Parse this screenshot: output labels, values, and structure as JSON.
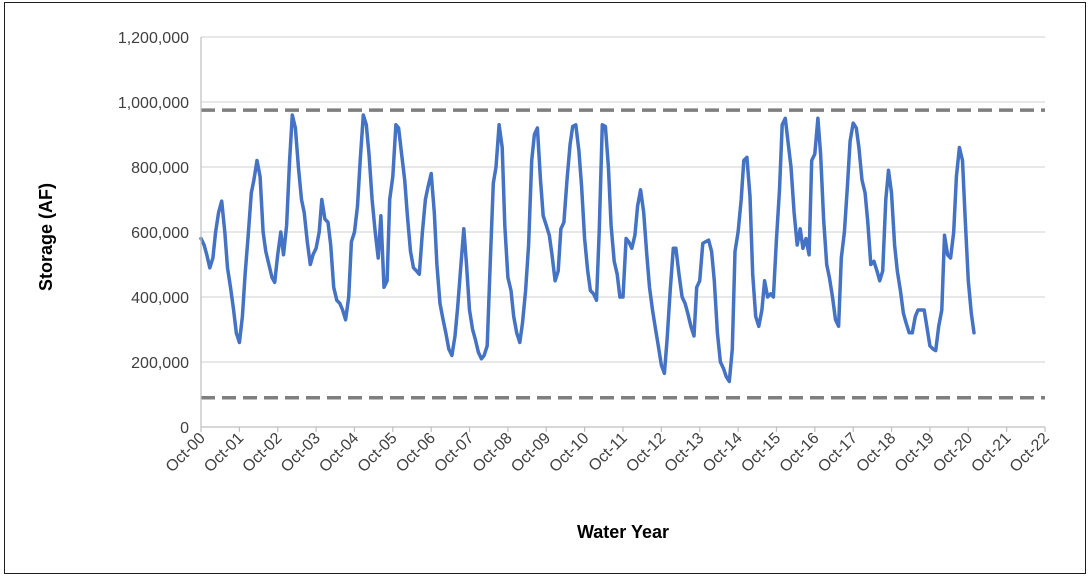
{
  "chart_data": {
    "type": "line",
    "title": "",
    "xlabel": "Water Year",
    "ylabel": "Storage (AF)",
    "ylim": [
      0,
      1200000
    ],
    "y_ticks": [
      0,
      200000,
      400000,
      600000,
      800000,
      1000000,
      1200000
    ],
    "y_tick_labels": [
      "0",
      "200,000",
      "400,000",
      "600,000",
      "800,000",
      "1,000,000",
      "1,200,000"
    ],
    "x_tick_labels": [
      "Oct-00",
      "Oct-01",
      "Oct-02",
      "Oct-03",
      "Oct-04",
      "Oct-05",
      "Oct-06",
      "Oct-07",
      "Oct-08",
      "Oct-09",
      "Oct-10",
      "Oct-11",
      "Oct-12",
      "Oct-13",
      "Oct-14",
      "Oct-15",
      "Oct-16",
      "Oct-17",
      "Oct-18",
      "Oct-19",
      "Oct-20",
      "Oct-21",
      "Oct-22"
    ],
    "x_range_years": [
      0,
      22
    ],
    "grid": "horizontal",
    "series": [
      {
        "role": "storage",
        "color": "#4472C4",
        "points": [
          [
            0.0,
            580000
          ],
          [
            0.08,
            560000
          ],
          [
            0.15,
            530000
          ],
          [
            0.23,
            490000
          ],
          [
            0.31,
            520000
          ],
          [
            0.38,
            600000
          ],
          [
            0.46,
            660000
          ],
          [
            0.54,
            695000
          ],
          [
            0.62,
            600000
          ],
          [
            0.69,
            490000
          ],
          [
            0.77,
            430000
          ],
          [
            0.85,
            360000
          ],
          [
            0.92,
            290000
          ],
          [
            1.0,
            260000
          ],
          [
            1.08,
            340000
          ],
          [
            1.15,
            470000
          ],
          [
            1.23,
            590000
          ],
          [
            1.31,
            720000
          ],
          [
            1.38,
            760000
          ],
          [
            1.46,
            820000
          ],
          [
            1.54,
            770000
          ],
          [
            1.62,
            600000
          ],
          [
            1.69,
            540000
          ],
          [
            1.77,
            500000
          ],
          [
            1.85,
            460000
          ],
          [
            1.92,
            445000
          ],
          [
            2.0,
            530000
          ],
          [
            2.08,
            600000
          ],
          [
            2.15,
            530000
          ],
          [
            2.23,
            620000
          ],
          [
            2.31,
            820000
          ],
          [
            2.38,
            960000
          ],
          [
            2.46,
            920000
          ],
          [
            2.54,
            800000
          ],
          [
            2.62,
            700000
          ],
          [
            2.69,
            660000
          ],
          [
            2.77,
            570000
          ],
          [
            2.85,
            500000
          ],
          [
            2.92,
            530000
          ],
          [
            3.0,
            550000
          ],
          [
            3.08,
            600000
          ],
          [
            3.15,
            700000
          ],
          [
            3.23,
            640000
          ],
          [
            3.31,
            630000
          ],
          [
            3.38,
            560000
          ],
          [
            3.46,
            430000
          ],
          [
            3.54,
            390000
          ],
          [
            3.62,
            380000
          ],
          [
            3.69,
            360000
          ],
          [
            3.77,
            330000
          ],
          [
            3.85,
            400000
          ],
          [
            3.92,
            570000
          ],
          [
            4.0,
            600000
          ],
          [
            4.08,
            680000
          ],
          [
            4.15,
            820000
          ],
          [
            4.23,
            960000
          ],
          [
            4.31,
            930000
          ],
          [
            4.38,
            840000
          ],
          [
            4.46,
            700000
          ],
          [
            4.54,
            600000
          ],
          [
            4.62,
            520000
          ],
          [
            4.69,
            650000
          ],
          [
            4.77,
            430000
          ],
          [
            4.85,
            450000
          ],
          [
            4.92,
            700000
          ],
          [
            5.0,
            770000
          ],
          [
            5.08,
            930000
          ],
          [
            5.15,
            920000
          ],
          [
            5.23,
            840000
          ],
          [
            5.31,
            760000
          ],
          [
            5.38,
            650000
          ],
          [
            5.46,
            540000
          ],
          [
            5.54,
            490000
          ],
          [
            5.62,
            480000
          ],
          [
            5.69,
            470000
          ],
          [
            5.77,
            600000
          ],
          [
            5.85,
            700000
          ],
          [
            5.92,
            740000
          ],
          [
            6.0,
            780000
          ],
          [
            6.08,
            660000
          ],
          [
            6.15,
            500000
          ],
          [
            6.23,
            380000
          ],
          [
            6.31,
            330000
          ],
          [
            6.38,
            290000
          ],
          [
            6.46,
            240000
          ],
          [
            6.54,
            220000
          ],
          [
            6.62,
            280000
          ],
          [
            6.69,
            370000
          ],
          [
            6.77,
            490000
          ],
          [
            6.85,
            610000
          ],
          [
            6.92,
            500000
          ],
          [
            7.0,
            360000
          ],
          [
            7.08,
            300000
          ],
          [
            7.15,
            270000
          ],
          [
            7.23,
            230000
          ],
          [
            7.31,
            210000
          ],
          [
            7.38,
            220000
          ],
          [
            7.46,
            250000
          ],
          [
            7.54,
            510000
          ],
          [
            7.62,
            750000
          ],
          [
            7.69,
            800000
          ],
          [
            7.77,
            930000
          ],
          [
            7.85,
            860000
          ],
          [
            7.92,
            620000
          ],
          [
            8.0,
            460000
          ],
          [
            8.08,
            420000
          ],
          [
            8.15,
            340000
          ],
          [
            8.23,
            290000
          ],
          [
            8.31,
            260000
          ],
          [
            8.38,
            320000
          ],
          [
            8.46,
            420000
          ],
          [
            8.54,
            560000
          ],
          [
            8.62,
            820000
          ],
          [
            8.69,
            900000
          ],
          [
            8.77,
            920000
          ],
          [
            8.85,
            760000
          ],
          [
            8.92,
            650000
          ],
          [
            9.0,
            620000
          ],
          [
            9.08,
            590000
          ],
          [
            9.15,
            530000
          ],
          [
            9.23,
            450000
          ],
          [
            9.31,
            480000
          ],
          [
            9.38,
            610000
          ],
          [
            9.46,
            630000
          ],
          [
            9.54,
            760000
          ],
          [
            9.62,
            870000
          ],
          [
            9.69,
            925000
          ],
          [
            9.77,
            930000
          ],
          [
            9.85,
            850000
          ],
          [
            9.92,
            740000
          ],
          [
            10.0,
            580000
          ],
          [
            10.08,
            480000
          ],
          [
            10.15,
            420000
          ],
          [
            10.23,
            410000
          ],
          [
            10.31,
            390000
          ],
          [
            10.38,
            600000
          ],
          [
            10.46,
            930000
          ],
          [
            10.54,
            925000
          ],
          [
            10.62,
            800000
          ],
          [
            10.69,
            620000
          ],
          [
            10.77,
            510000
          ],
          [
            10.85,
            470000
          ],
          [
            10.92,
            400000
          ],
          [
            11.0,
            400000
          ],
          [
            11.08,
            580000
          ],
          [
            11.15,
            570000
          ],
          [
            11.23,
            550000
          ],
          [
            11.31,
            590000
          ],
          [
            11.38,
            680000
          ],
          [
            11.46,
            730000
          ],
          [
            11.54,
            660000
          ],
          [
            11.62,
            530000
          ],
          [
            11.69,
            430000
          ],
          [
            11.77,
            360000
          ],
          [
            11.85,
            300000
          ],
          [
            11.92,
            250000
          ],
          [
            12.0,
            190000
          ],
          [
            12.08,
            165000
          ],
          [
            12.15,
            270000
          ],
          [
            12.23,
            420000
          ],
          [
            12.31,
            550000
          ],
          [
            12.38,
            550000
          ],
          [
            12.46,
            470000
          ],
          [
            12.54,
            400000
          ],
          [
            12.62,
            380000
          ],
          [
            12.69,
            350000
          ],
          [
            12.77,
            310000
          ],
          [
            12.85,
            280000
          ],
          [
            12.92,
            430000
          ],
          [
            13.0,
            450000
          ],
          [
            13.08,
            565000
          ],
          [
            13.15,
            570000
          ],
          [
            13.23,
            575000
          ],
          [
            13.31,
            540000
          ],
          [
            13.38,
            450000
          ],
          [
            13.46,
            290000
          ],
          [
            13.54,
            200000
          ],
          [
            13.62,
            180000
          ],
          [
            13.69,
            155000
          ],
          [
            13.77,
            140000
          ],
          [
            13.85,
            240000
          ],
          [
            13.92,
            540000
          ],
          [
            14.0,
            600000
          ],
          [
            14.08,
            700000
          ],
          [
            14.15,
            820000
          ],
          [
            14.23,
            830000
          ],
          [
            14.31,
            710000
          ],
          [
            14.38,
            470000
          ],
          [
            14.46,
            340000
          ],
          [
            14.54,
            310000
          ],
          [
            14.62,
            360000
          ],
          [
            14.69,
            450000
          ],
          [
            14.77,
            400000
          ],
          [
            14.85,
            410000
          ],
          [
            14.92,
            400000
          ],
          [
            15.0,
            580000
          ],
          [
            15.08,
            730000
          ],
          [
            15.15,
            930000
          ],
          [
            15.23,
            950000
          ],
          [
            15.31,
            870000
          ],
          [
            15.38,
            800000
          ],
          [
            15.46,
            660000
          ],
          [
            15.54,
            560000
          ],
          [
            15.62,
            610000
          ],
          [
            15.69,
            550000
          ],
          [
            15.77,
            580000
          ],
          [
            15.85,
            530000
          ],
          [
            15.92,
            820000
          ],
          [
            16.0,
            840000
          ],
          [
            16.08,
            950000
          ],
          [
            16.15,
            840000
          ],
          [
            16.23,
            640000
          ],
          [
            16.31,
            500000
          ],
          [
            16.38,
            460000
          ],
          [
            16.46,
            400000
          ],
          [
            16.54,
            330000
          ],
          [
            16.62,
            310000
          ],
          [
            16.69,
            520000
          ],
          [
            16.77,
            600000
          ],
          [
            16.85,
            740000
          ],
          [
            16.92,
            880000
          ],
          [
            17.0,
            935000
          ],
          [
            17.08,
            920000
          ],
          [
            17.15,
            860000
          ],
          [
            17.23,
            760000
          ],
          [
            17.31,
            720000
          ],
          [
            17.38,
            630000
          ],
          [
            17.46,
            500000
          ],
          [
            17.54,
            510000
          ],
          [
            17.62,
            480000
          ],
          [
            17.69,
            450000
          ],
          [
            17.77,
            480000
          ],
          [
            17.85,
            700000
          ],
          [
            17.92,
            790000
          ],
          [
            18.0,
            720000
          ],
          [
            18.08,
            560000
          ],
          [
            18.15,
            480000
          ],
          [
            18.23,
            420000
          ],
          [
            18.31,
            350000
          ],
          [
            18.38,
            320000
          ],
          [
            18.46,
            290000
          ],
          [
            18.54,
            290000
          ],
          [
            18.62,
            340000
          ],
          [
            18.69,
            360000
          ],
          [
            18.77,
            360000
          ],
          [
            18.85,
            360000
          ],
          [
            18.92,
            310000
          ],
          [
            19.0,
            250000
          ],
          [
            19.08,
            240000
          ],
          [
            19.15,
            235000
          ],
          [
            19.23,
            310000
          ],
          [
            19.31,
            360000
          ],
          [
            19.38,
            590000
          ],
          [
            19.46,
            530000
          ],
          [
            19.54,
            520000
          ],
          [
            19.62,
            600000
          ],
          [
            19.69,
            770000
          ],
          [
            19.77,
            860000
          ],
          [
            19.85,
            820000
          ],
          [
            19.92,
            640000
          ],
          [
            20.0,
            450000
          ],
          [
            20.08,
            350000
          ],
          [
            20.15,
            290000
          ]
        ]
      },
      {
        "role": "upper-limit",
        "color": "#7F7F7F",
        "dashed": true,
        "value": 975000
      },
      {
        "role": "lower-limit",
        "color": "#7F7F7F",
        "dashed": true,
        "value": 90000
      }
    ]
  },
  "colors": {
    "line": "#4472C4",
    "limits": "#7F7F7F",
    "gridline": "#D9D9D9",
    "axis": "#BFBFBF",
    "frame": "#1F1F1F"
  }
}
